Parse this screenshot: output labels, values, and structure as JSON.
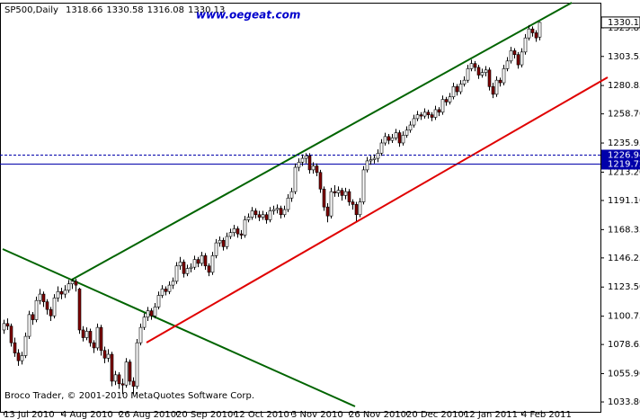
{
  "chart_data": {
    "type": "candlestick",
    "symbol": "SP500,Daily",
    "watermark": "www.oegeat.com",
    "copyright": "Broco Trader, © 2001-2010 MetaQuotes Software Corp.",
    "up_color": "#ffffff",
    "down_color": "#800000",
    "ylim": [
      1026.1,
      1345.5
    ],
    "yticks": [
      1325.85,
      1303.55,
      1280.85,
      {
        "value": 1258.7,
        "label": "1258.70"
      },
      1235.95,
      {
        "value": 1213.2,
        "label": "1213.20"
      },
      {
        "value": 1191.1,
        "label": "1191.10"
      },
      1168.35,
      1146.25,
      {
        "value": 1123.5,
        "label": "1123.50"
      },
      1100.75,
      1078.65,
      {
        "value": 1055.9,
        "label": "1055.90"
      },
      {
        "value": 1033.8,
        "label": "1033.80"
      }
    ],
    "hlines": [
      {
        "value": 1226.94,
        "color": "#0000aa",
        "dashed": true
      },
      {
        "value": 1219.72,
        "color": "#0000aa",
        "dashed": false
      }
    ],
    "categories": [
      "13 Jul 2010",
      null,
      null,
      null,
      null,
      null,
      null,
      null,
      null,
      null,
      null,
      null,
      null,
      null,
      null,
      null,
      "4 Aug 2010",
      null,
      null,
      null,
      null,
      null,
      null,
      null,
      null,
      null,
      null,
      null,
      null,
      null,
      null,
      null,
      "26 Aug 2010",
      null,
      null,
      null,
      null,
      null,
      null,
      null,
      null,
      null,
      null,
      null,
      null,
      null,
      null,
      null,
      "20 Sep 2010",
      null,
      null,
      null,
      null,
      null,
      null,
      null,
      null,
      null,
      null,
      null,
      null,
      null,
      null,
      null,
      "12 Oct 2010",
      null,
      null,
      null,
      null,
      null,
      null,
      null,
      null,
      null,
      null,
      null,
      null,
      null,
      null,
      null,
      "3 Nov 2010",
      null,
      null,
      null,
      null,
      null,
      null,
      null,
      null,
      null,
      null,
      null,
      null,
      null,
      null,
      null,
      "26 Nov 2010",
      null,
      null,
      null,
      null,
      null,
      null,
      null,
      null,
      null,
      null,
      null,
      null,
      null,
      null,
      null,
      "20 Dec 2010",
      null,
      null,
      null,
      null,
      null,
      null,
      null,
      null,
      null,
      null,
      null,
      null,
      null,
      null,
      null,
      "12 Jan 2011",
      null,
      null,
      null,
      null,
      null,
      null,
      null,
      null,
      null,
      null,
      null,
      null,
      null,
      null,
      null,
      "4 Feb 2011",
      null,
      null,
      null,
      null,
      null
    ],
    "ohlc": [
      [
        1090,
        1098,
        1087,
        1095
      ],
      [
        1095,
        1099,
        1090,
        1093
      ],
      [
        1093,
        1095,
        1077,
        1080
      ],
      [
        1080,
        1084,
        1069,
        1072
      ],
      [
        1072,
        1075,
        1062,
        1066
      ],
      [
        1066,
        1073,
        1063,
        1070
      ],
      [
        1070,
        1088,
        1068,
        1085
      ],
      [
        1085,
        1105,
        1083,
        1102
      ],
      [
        1102,
        1104,
        1094,
        1098
      ],
      [
        1098,
        1116,
        1096,
        1113
      ],
      [
        1113,
        1122,
        1110,
        1118
      ],
      [
        1118,
        1120,
        1108,
        1112
      ],
      [
        1112,
        1114,
        1102,
        1106
      ],
      [
        1106,
        1108,
        1097,
        1101
      ],
      [
        1101,
        1118,
        1099,
        1115
      ],
      [
        1115,
        1124,
        1112,
        1120
      ],
      [
        1120,
        1123,
        1114,
        1118
      ],
      [
        1118,
        1125,
        1115,
        1121
      ],
      [
        1121,
        1129,
        1119,
        1126
      ],
      [
        1126,
        1130,
        1122,
        1128
      ],
      [
        1128,
        1130,
        1120,
        1125
      ],
      [
        1122,
        1123,
        1087,
        1090
      ],
      [
        1090,
        1093,
        1081,
        1084
      ],
      [
        1084,
        1092,
        1082,
        1089
      ],
      [
        1089,
        1091,
        1077,
        1080
      ],
      [
        1080,
        1082,
        1072,
        1076
      ],
      [
        1076,
        1095,
        1074,
        1092
      ],
      [
        1092,
        1094,
        1070,
        1074
      ],
      [
        1074,
        1077,
        1064,
        1068
      ],
      [
        1068,
        1075,
        1065,
        1071
      ],
      [
        1071,
        1073,
        1046,
        1050
      ],
      [
        1050,
        1058,
        1047,
        1055
      ],
      [
        1055,
        1057,
        1044,
        1048
      ],
      [
        1048,
        1052,
        1040,
        1047
      ],
      [
        1047,
        1068,
        1045,
        1065
      ],
      [
        1065,
        1067,
        1047,
        1050
      ],
      [
        1050,
        1053,
        1040,
        1046
      ],
      [
        1046,
        1083,
        1044,
        1080
      ],
      [
        1080,
        1095,
        1078,
        1092
      ],
      [
        1092,
        1103,
        1090,
        1100
      ],
      [
        1100,
        1108,
        1097,
        1105
      ],
      [
        1105,
        1107,
        1098,
        1101
      ],
      [
        1101,
        1111,
        1099,
        1108
      ],
      [
        1108,
        1120,
        1106,
        1117
      ],
      [
        1117,
        1125,
        1115,
        1122
      ],
      [
        1122,
        1124,
        1117,
        1120
      ],
      [
        1120,
        1128,
        1118,
        1125
      ],
      [
        1125,
        1131,
        1122,
        1128
      ],
      [
        1128,
        1143,
        1126,
        1140
      ],
      [
        1140,
        1147,
        1137,
        1143
      ],
      [
        1143,
        1145,
        1131,
        1134
      ],
      [
        1134,
        1141,
        1132,
        1138
      ],
      [
        1138,
        1142,
        1135,
        1139
      ],
      [
        1139,
        1148,
        1137,
        1145
      ],
      [
        1145,
        1147,
        1139,
        1142
      ],
      [
        1142,
        1151,
        1140,
        1148
      ],
      [
        1148,
        1150,
        1137,
        1140
      ],
      [
        1140,
        1142,
        1132,
        1135
      ],
      [
        1135,
        1151,
        1133,
        1148
      ],
      [
        1148,
        1161,
        1146,
        1158
      ],
      [
        1158,
        1163,
        1155,
        1160
      ],
      [
        1160,
        1162,
        1152,
        1155
      ],
      [
        1155,
        1166,
        1153,
        1163
      ],
      [
        1163,
        1169,
        1161,
        1166
      ],
      [
        1166,
        1172,
        1163,
        1169
      ],
      [
        1169,
        1171,
        1162,
        1165
      ],
      [
        1165,
        1168,
        1161,
        1164
      ],
      [
        1164,
        1179,
        1162,
        1176
      ],
      [
        1176,
        1181,
        1174,
        1178
      ],
      [
        1178,
        1186,
        1176,
        1183
      ],
      [
        1183,
        1185,
        1177,
        1180
      ],
      [
        1180,
        1183,
        1175,
        1178
      ],
      [
        1178,
        1183,
        1176,
        1180
      ],
      [
        1180,
        1182,
        1173,
        1176
      ],
      [
        1176,
        1186,
        1174,
        1183
      ],
      [
        1183,
        1187,
        1180,
        1184
      ],
      [
        1184,
        1188,
        1181,
        1185
      ],
      [
        1185,
        1187,
        1177,
        1180
      ],
      [
        1180,
        1187,
        1178,
        1184
      ],
      [
        1184,
        1196,
        1182,
        1193
      ],
      [
        1193,
        1201,
        1190,
        1198
      ],
      [
        1198,
        1220,
        1196,
        1217
      ],
      [
        1217,
        1224,
        1214,
        1221
      ],
      [
        1221,
        1227,
        1218,
        1224
      ],
      [
        1224,
        1228,
        1220,
        1226
      ],
      [
        1226,
        1228,
        1212,
        1215
      ],
      [
        1215,
        1221,
        1212,
        1218
      ],
      [
        1218,
        1220,
        1210,
        1213
      ],
      [
        1213,
        1215,
        1197,
        1200
      ],
      [
        1200,
        1202,
        1183,
        1186
      ],
      [
        1186,
        1189,
        1174,
        1179
      ],
      [
        1179,
        1201,
        1177,
        1198
      ],
      [
        1198,
        1203,
        1194,
        1197
      ],
      [
        1197,
        1202,
        1194,
        1199
      ],
      [
        1199,
        1201,
        1191,
        1195
      ],
      [
        1195,
        1201,
        1192,
        1198
      ],
      [
        1198,
        1200,
        1187,
        1190
      ],
      [
        1190,
        1192,
        1184,
        1188
      ],
      [
        1188,
        1190,
        1175,
        1180
      ],
      [
        1180,
        1193,
        1178,
        1190
      ],
      [
        1190,
        1218,
        1188,
        1215
      ],
      [
        1215,
        1225,
        1213,
        1222
      ],
      [
        1222,
        1226,
        1219,
        1223
      ],
      [
        1223,
        1227,
        1220,
        1224
      ],
      [
        1224,
        1231,
        1221,
        1228
      ],
      [
        1228,
        1239,
        1226,
        1236
      ],
      [
        1236,
        1244,
        1234,
        1241
      ],
      [
        1241,
        1243,
        1235,
        1238
      ],
      [
        1238,
        1243,
        1236,
        1240
      ],
      [
        1240,
        1247,
        1238,
        1244
      ],
      [
        1244,
        1246,
        1233,
        1236
      ],
      [
        1236,
        1245,
        1234,
        1242
      ],
      [
        1242,
        1249,
        1240,
        1246
      ],
      [
        1246,
        1253,
        1244,
        1250
      ],
      [
        1250,
        1258,
        1248,
        1255
      ],
      [
        1255,
        1261,
        1253,
        1258
      ],
      [
        1258,
        1260,
        1254,
        1257
      ],
      [
        1257,
        1263,
        1255,
        1260
      ],
      [
        1260,
        1262,
        1255,
        1258
      ],
      [
        1258,
        1260,
        1253,
        1256
      ],
      [
        1256,
        1265,
        1254,
        1262
      ],
      [
        1262,
        1264,
        1257,
        1260
      ],
      [
        1260,
        1273,
        1258,
        1270
      ],
      [
        1270,
        1272,
        1265,
        1268
      ],
      [
        1268,
        1275,
        1266,
        1272
      ],
      [
        1272,
        1283,
        1270,
        1280
      ],
      [
        1280,
        1282,
        1273,
        1276
      ],
      [
        1276,
        1285,
        1274,
        1282
      ],
      [
        1282,
        1288,
        1280,
        1285
      ],
      [
        1285,
        1297,
        1283,
        1294
      ],
      [
        1294,
        1301,
        1292,
        1298
      ],
      [
        1298,
        1300,
        1292,
        1295
      ],
      [
        1295,
        1297,
        1286,
        1289
      ],
      [
        1289,
        1294,
        1287,
        1291
      ],
      [
        1291,
        1296,
        1288,
        1293
      ],
      [
        1293,
        1295,
        1277,
        1280
      ],
      [
        1280,
        1283,
        1271,
        1274
      ],
      [
        1274,
        1288,
        1272,
        1285
      ],
      [
        1285,
        1287,
        1280,
        1283
      ],
      [
        1283,
        1297,
        1281,
        1294
      ],
      [
        1294,
        1303,
        1292,
        1300
      ],
      [
        1300,
        1311,
        1298,
        1308
      ],
      [
        1308,
        1310,
        1302,
        1305
      ],
      [
        1305,
        1307,
        1294,
        1297
      ],
      [
        1297,
        1310,
        1295,
        1307
      ],
      [
        1307,
        1321,
        1305,
        1318
      ],
      [
        1318,
        1328,
        1316,
        1325
      ],
      [
        1325,
        1327,
        1319,
        1322
      ],
      [
        1322,
        1324,
        1315,
        1318
      ],
      [
        1318.66,
        1330.58,
        1316.08,
        1330.13
      ]
    ]
  }
}
